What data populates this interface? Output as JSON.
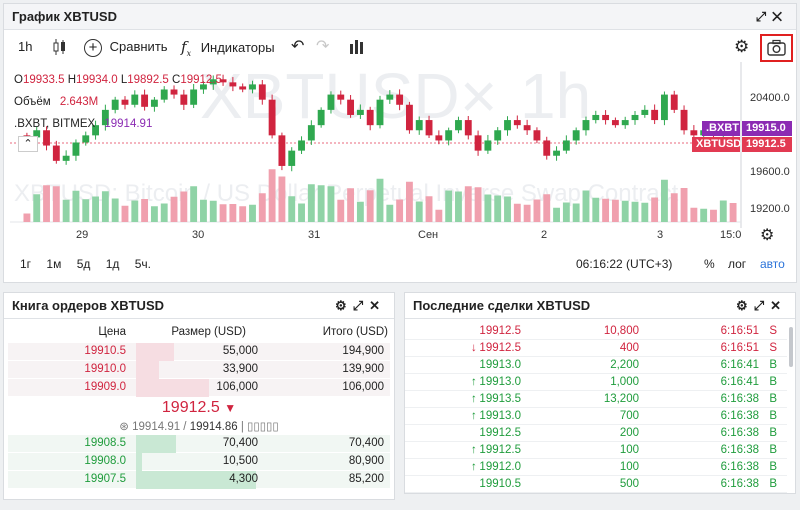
{
  "chart_panel": {
    "title": "График XBTUSD",
    "controls": [
      "⤢",
      "✕"
    ],
    "toolbar": {
      "interval": "1h",
      "compare_label": "Сравнить",
      "indicators_label": "Индикаторы"
    },
    "ohlc": {
      "o_label": "O",
      "o": "19933.5",
      "h_label": "H",
      "h": "19934.0",
      "l_label": "L",
      "l": "19892.5",
      "c_label": "C",
      "c": "19912.5"
    },
    "volume_label": "Объём",
    "volume_value": "2.643M",
    "index_label": ".BXBT, BITMEX",
    "index_value": "19914.91",
    "watermark_symbol": "XBTUSD",
    "watermark_interval": "1h",
    "watermark_desc": "XBTUSD: Bitcoin / US Dollar Perpetual Inverse Swap Contract",
    "price_tags": [
      {
        "symbol": ".BXBT",
        "value": "19915.0",
        "color": "#8b2bb3"
      },
      {
        "symbol": "XBTUSD",
        "value": "19912.5",
        "color": "#e23a52"
      }
    ],
    "y_ticks": [
      "20400.0",
      "19600.0",
      "19200.0"
    ],
    "x_ticks": [
      "29",
      "30",
      "31",
      "Сен",
      "2",
      "3",
      "15:0"
    ],
    "timeframes": [
      "1г",
      "1м",
      "5д",
      "1д",
      "5ч."
    ],
    "clock": "06:16:22 (UTC+3)",
    "scale_options": [
      "%",
      "лог",
      "авто"
    ],
    "colors": {
      "up": "#2fa84f",
      "down": "#d0243f",
      "vol_up": "#8fd3a6",
      "vol_down": "#f0a0ae"
    }
  },
  "chart_data": {
    "type": "candlestick",
    "symbol": "XBTUSD",
    "interval": "1h",
    "x_ticks": [
      "29",
      "30",
      "31",
      "Сен",
      "2",
      "3",
      "15:0"
    ],
    "y_ticks": [
      19200,
      19600,
      20400
    ],
    "ylim": [
      19050,
      20600
    ],
    "last_price": 19912.5,
    "index_price": 19915.0,
    "close_series": [
      19880,
      19950,
      19800,
      19650,
      19700,
      19830,
      19900,
      20000,
      20150,
      20250,
      20200,
      20300,
      20180,
      20250,
      20350,
      20300,
      20200,
      20350,
      20400,
      20450,
      20420,
      20380,
      20350,
      20400,
      20250,
      19900,
      19600,
      19750,
      19850,
      20000,
      20150,
      20300,
      20250,
      20100,
      20150,
      20000,
      20250,
      20300,
      20200,
      19950,
      20050,
      19900,
      19850,
      19950,
      20050,
      19900,
      19750,
      19850,
      19950,
      20050,
      20000,
      19950,
      19850,
      19700,
      19750,
      19850,
      19950,
      20050,
      20100,
      20050,
      20000,
      20050,
      20100,
      20150,
      20050,
      20300,
      20150,
      19950,
      19900,
      19950,
      19900,
      19920,
      19912
    ]
  },
  "orderbook": {
    "title": "Книга ордеров XBTUSD",
    "headers": [
      "Цена",
      "Размер (USD)",
      "Итого (USD)"
    ],
    "asks": [
      {
        "price": "19910.5",
        "size": "55,000",
        "total": "194,900",
        "depth": 0.31
      },
      {
        "price": "19910.0",
        "size": "33,900",
        "total": "139,900",
        "depth": 0.19
      },
      {
        "price": "19909.0",
        "size": "106,000",
        "total": "106,000",
        "depth": 0.6
      }
    ],
    "mid_price": "19912.5",
    "mid_arrow": "▼",
    "index_line": "19914.91",
    "mark_line": "19914.86",
    "bids": [
      {
        "price": "19908.5",
        "size": "70,400",
        "total": "70,400",
        "depth": 0.33
      },
      {
        "price": "19908.0",
        "size": "10,500",
        "total": "80,900",
        "depth": 0.05
      },
      {
        "price": "19907.5",
        "size": "4,300",
        "total": "85,200",
        "depth": 0.98
      }
    ]
  },
  "trades": {
    "title": "Последние сделки XBTUSD",
    "rows": [
      {
        "arrow": "",
        "price": "19912.5",
        "size": "10,800",
        "time": "6:16:51",
        "side": "S"
      },
      {
        "arrow": "↓",
        "price": "19912.5",
        "size": "400",
        "time": "6:16:51",
        "side": "S"
      },
      {
        "arrow": "",
        "price": "19913.0",
        "size": "2,200",
        "time": "6:16:41",
        "side": "B"
      },
      {
        "arrow": "↑",
        "price": "19913.0",
        "size": "1,000",
        "time": "6:16:41",
        "side": "B"
      },
      {
        "arrow": "↑",
        "price": "19913.5",
        "size": "13,200",
        "time": "6:16:38",
        "side": "B"
      },
      {
        "arrow": "↑",
        "price": "19913.0",
        "size": "700",
        "time": "6:16:38",
        "side": "B"
      },
      {
        "arrow": "",
        "price": "19912.5",
        "size": "200",
        "time": "6:16:38",
        "side": "B"
      },
      {
        "arrow": "↑",
        "price": "19912.5",
        "size": "100",
        "time": "6:16:38",
        "side": "B"
      },
      {
        "arrow": "↑",
        "price": "19912.0",
        "size": "100",
        "time": "6:16:38",
        "side": "B"
      },
      {
        "arrow": "",
        "price": "19910.5",
        "size": "500",
        "time": "6:16:38",
        "side": "B"
      }
    ]
  }
}
